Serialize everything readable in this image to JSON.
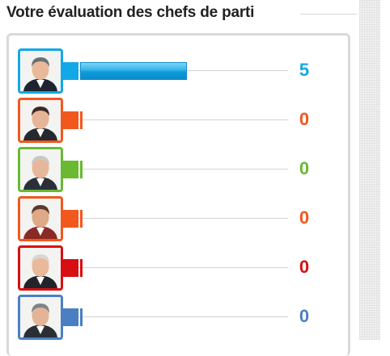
{
  "title": "Votre évaluation des chefs de parti",
  "max_value": 5,
  "leaders": [
    {
      "value": "5",
      "score": 5,
      "color": "#12a8e6"
    },
    {
      "value": "0",
      "score": 0,
      "color": "#f2581e"
    },
    {
      "value": "0",
      "score": 0,
      "color": "#69ba31"
    },
    {
      "value": "0",
      "score": 0,
      "color": "#f2581e"
    },
    {
      "value": "0",
      "score": 0,
      "color": "#d80f12"
    },
    {
      "value": "0",
      "score": 0,
      "color": "#4a7fc4"
    }
  ],
  "icons": {
    "avatar": "leader-portrait-icon"
  }
}
